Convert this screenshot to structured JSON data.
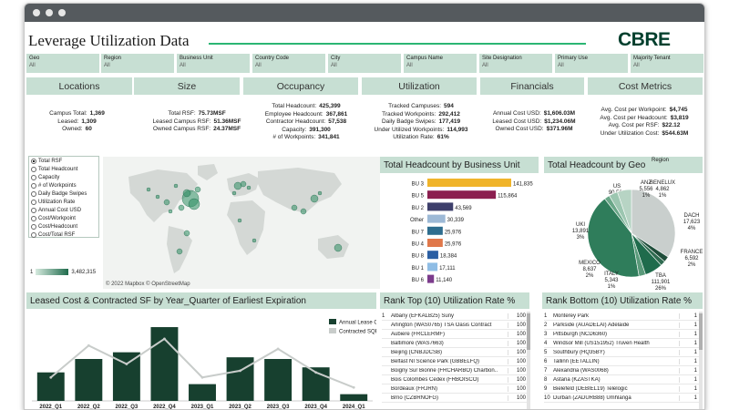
{
  "title": "Leverage Utilization Data",
  "logo": "CBRE",
  "filters": [
    {
      "label": "Geo",
      "value": "All"
    },
    {
      "label": "Region",
      "value": "All"
    },
    {
      "label": "Business Unit",
      "value": "All"
    },
    {
      "label": "Country Code",
      "value": "All"
    },
    {
      "label": "City",
      "value": "All"
    },
    {
      "label": "Campus Name",
      "value": "All"
    },
    {
      "label": "Site Designation",
      "value": "All"
    },
    {
      "label": "Primary Use",
      "value": "All"
    },
    {
      "label": "Majority Tenant",
      "value": "All"
    }
  ],
  "sections": [
    "Locations",
    "Size",
    "Occupancy",
    "Utilization",
    "Financials",
    "Cost Metrics"
  ],
  "kpis": {
    "locations": [
      {
        "k": "Campus Total:",
        "v": "1,369"
      },
      {
        "k": "Leased:",
        "v": "1,309"
      },
      {
        "k": "Owned:",
        "v": "60"
      }
    ],
    "size": [
      {
        "k": "Total RSF:",
        "v": "75.73MSF"
      },
      {
        "k": "Leased Campus RSF:",
        "v": "51.36MSF"
      },
      {
        "k": "Owned Campus RSF:",
        "v": "24.37MSF"
      }
    ],
    "occupancy": [
      {
        "k": "Total Headcount:",
        "v": "425,399"
      },
      {
        "k": "Employee Headcount:",
        "v": "367,861"
      },
      {
        "k": "Contractor Headcount:",
        "v": "57,538"
      },
      {
        "k": "Capacity:",
        "v": "391,300"
      },
      {
        "k": "# of Workpoints:",
        "v": "341,841"
      }
    ],
    "utilization": [
      {
        "k": "Tracked Campuses:",
        "v": "594"
      },
      {
        "k": "Tracked Workpoints:",
        "v": "292,412"
      },
      {
        "k": "Daily Badge Swipes:",
        "v": "177,419"
      },
      {
        "k": "Under Utilized Workpoints:",
        "v": "114,993"
      },
      {
        "k": "Utilization Rate:",
        "v": "61%"
      }
    ],
    "financials": [
      {
        "k": "Annual Cost USD:",
        "v": "$1,606.03M"
      },
      {
        "k": "Leased Cost USD:",
        "v": "$1,234.06M"
      },
      {
        "k": "Owned Cost USD:",
        "v": "$371.96M"
      }
    ],
    "cost_metrics": [
      {
        "k": "Avg. Cost per Workpoint:",
        "v": "$4,745"
      },
      {
        "k": "Avg. Cost per Headcount:",
        "v": "$3,819"
      },
      {
        "k": "Avg. Cost per RSF:",
        "v": "$22.12"
      },
      {
        "k": "Under Utilization Cost:",
        "v": "$544.63M"
      }
    ]
  },
  "measures": {
    "selected": "Total RSF",
    "options": [
      "Total RSF",
      "Total Headcount",
      "Capacity",
      "# of Workpoints",
      "Daily Badge Swipes",
      "Utilization Rate",
      "Annual Cost USD",
      "Cost/Workpoint",
      "Cost/Headcount",
      "Cost/Total RSF"
    ]
  },
  "map_legend": {
    "min": "1",
    "max": "3,482,315"
  },
  "map_credit": "© 2022 Mapbox © OpenStreetMap",
  "colors": {
    "accent": "#2bb673",
    "brand": "#003f2d",
    "panel": "#c7dfd3",
    "dark": "#1f4e3a"
  },
  "headcount_bu": {
    "title": "Total Headcount by Business Unit",
    "chart_data": {
      "type": "bar",
      "categories": [
        "BU 3",
        "BU 5",
        "BU 2",
        "Other",
        "BU 7",
        "BU 4",
        "BU 8",
        "BU 1",
        "BU 6"
      ],
      "values": [
        141835,
        115864,
        43569,
        30339,
        25976,
        25976,
        18384,
        17111,
        11140
      ],
      "value_labels": [
        "141,835",
        "115,864",
        "43,569",
        "30,339",
        "25,976",
        "25,976",
        "18,384",
        "17,111",
        "11,140"
      ],
      "colors": [
        "#f0b42a",
        "#8b1e4f",
        "#3d3f6b",
        "#9db9d6",
        "#2e6d8e",
        "#e0784a",
        "#2b5fa3",
        "#8fbde5",
        "#7b3b8c"
      ]
    }
  },
  "headcount_geo": {
    "title": "Total Headcount by Geo",
    "legend_title": "Region",
    "chart_data": {
      "type": "pie",
      "slices": [
        {
          "label": "US",
          "value": 90581,
          "value_label": "90,581",
          "pct": "21%",
          "color": "#c9cfcd"
        },
        {
          "label": "ANZ",
          "value": 5556,
          "value_label": "5,556",
          "pct": "1%",
          "color": "#1f4e3a"
        },
        {
          "label": "BENELUX",
          "value": 4862,
          "value_label": "4,862",
          "pct": "1%",
          "color": "#2f6b50"
        },
        {
          "label": "DACH",
          "value": 17623,
          "value_label": "17,623",
          "pct": "4%",
          "color": "#1f6b4c"
        },
        {
          "label": "FRANCE",
          "value": 6592,
          "value_label": "6,592",
          "pct": "2%",
          "color": "#5a9a7a"
        },
        {
          "label": "TBA",
          "value": 111901,
          "value_label": "111,901",
          "pct": "26%",
          "color": "#2f7d5b"
        },
        {
          "label": "ITALY",
          "value": 5343,
          "value_label": "5,343",
          "pct": "1%",
          "color": "#6aa788"
        },
        {
          "label": "MEXICO",
          "value": 8637,
          "value_label": "8,637",
          "pct": "2%",
          "color": "#9cc6b0"
        },
        {
          "label": "UKI",
          "value": 13891,
          "value_label": "13,891",
          "pct": "3%",
          "color": "#b7d4c4"
        }
      ]
    }
  },
  "leased_cost": {
    "title": "Leased Cost & Contracted SF by Year_Quarter of Earliest Expiration",
    "legend": [
      "Annual Lease Cost",
      "Contracted SQF"
    ],
    "chart_data": {
      "type": "bar",
      "categories": [
        "2022_Q1",
        "2022_Q2",
        "2022_Q3",
        "2022_Q4",
        "2023_Q1",
        "2023_Q2",
        "2023_Q3",
        "2023_Q4",
        "2024_Q1"
      ],
      "series": [
        {
          "name": "Annual Lease Cost",
          "values": [
            34,
            50,
            58,
            88,
            20,
            52,
            50,
            40,
            8
          ]
        },
        {
          "name": "Contracted SQF",
          "values": [
            28,
            66,
            44,
            74,
            28,
            36,
            62,
            34,
            16
          ]
        }
      ],
      "ylim": [
        0,
        100
      ]
    }
  },
  "rank_top": {
    "title": "Rank Top (10) Utilization Rate %",
    "rows": [
      {
        "rank": "1",
        "name": "Albany (EFKALB25) Suny",
        "value": "100"
      },
      {
        "rank": "",
        "name": "Arlington (WAS0765) TSA Oasis Contract",
        "value": "100"
      },
      {
        "rank": "",
        "name": "Aubiere (FRCLERMF)",
        "value": "100"
      },
      {
        "rank": "",
        "name": "Baltimore (WAS7663)",
        "value": "100"
      },
      {
        "rank": "",
        "name": "Beijing (CNBJDCSB)",
        "value": "100"
      },
      {
        "rank": "",
        "name": "Belfast NI Science Park (GBBELFQ)",
        "value": "100"
      },
      {
        "rank": "",
        "name": "Boigny Sur Bionne (FRCHARBO) Charbon..",
        "value": "100"
      },
      {
        "rank": "",
        "name": "Bois Colombes Cedex (FRBOISCO)",
        "value": "100"
      },
      {
        "rank": "",
        "name": "Bordeaux (FRJRN)",
        "value": "100"
      },
      {
        "rank": "",
        "name": "Brno (CZBRNOFG)",
        "value": "100"
      }
    ]
  },
  "rank_bottom": {
    "title": "Rank Bottom (10) Utilization Rate %",
    "rows": [
      {
        "rank": "1",
        "name": "Monterey Park",
        "value": "1"
      },
      {
        "rank": "2",
        "name": "Parkside (AUADELAI) Adelaide",
        "value": "1"
      },
      {
        "rank": "3",
        "name": "Pittsburgh (NCD6360)",
        "value": "1"
      },
      {
        "rank": "4",
        "name": "Windsor Mill (US151952) Truven Health",
        "value": "1"
      },
      {
        "rank": "5",
        "name": "Southbury (HQ35BY)",
        "value": "1"
      },
      {
        "rank": "6",
        "name": "Tallinn (EETALLIN)",
        "value": "1"
      },
      {
        "rank": "7",
        "name": "Alexandria (WAS0068)",
        "value": "1"
      },
      {
        "rank": "8",
        "name": "Astana (KZASTKA)",
        "value": "1"
      },
      {
        "rank": "9",
        "name": "Bielefeld (DEBIEL19) Telelogic",
        "value": "1"
      },
      {
        "rank": "10",
        "name": "Durban (ZADURB88) Umhlanga",
        "value": "1"
      }
    ]
  }
}
